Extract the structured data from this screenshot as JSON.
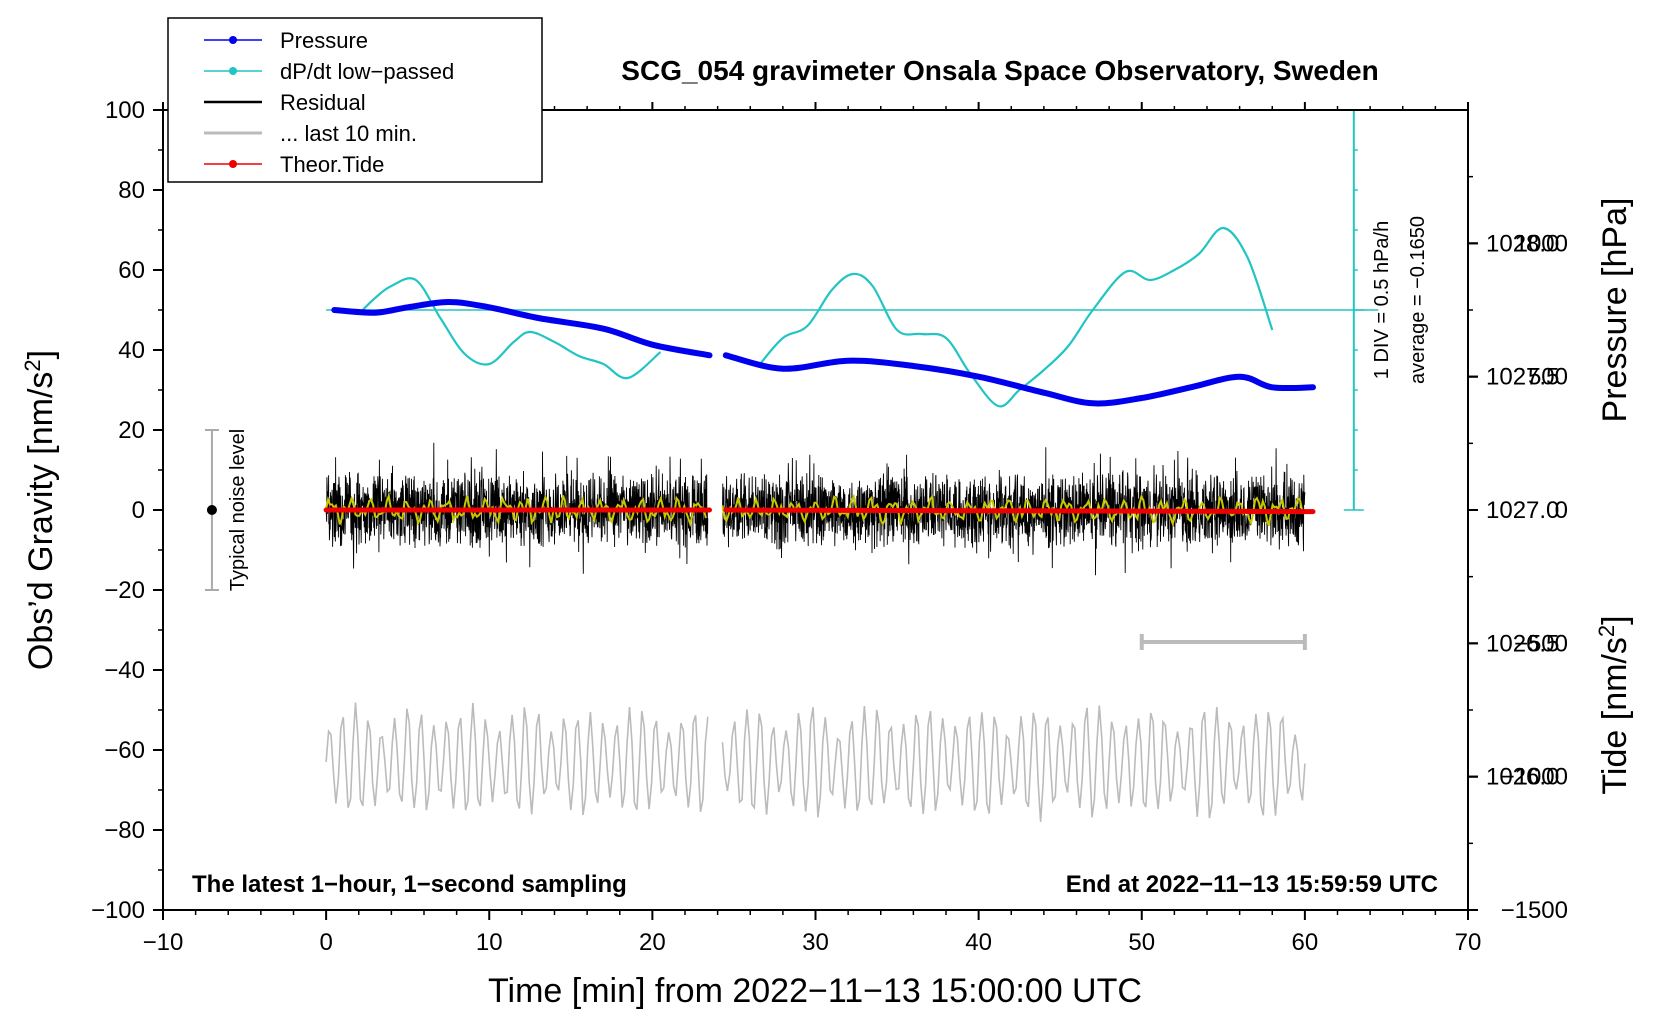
{
  "chart_data": {
    "type": "line",
    "title": "SCG_054 gravimeter Onsala Space Observatory, Sweden",
    "xlabel": "Time [min] from 2022−11−13 15:00:00 UTC",
    "ylabel_left_main": "Obs’d Gravity [nm/s",
    "ylabel_left_sup": "2",
    "ylabel_left_close": "]",
    "ylabel_right_pressure": "Pressure [hPa]",
    "ylabel_right_tide_main": "Tide [nm/s",
    "ylabel_right_tide_sup": "2",
    "ylabel_right_tide_close": "]",
    "xlim": [
      -10,
      70
    ],
    "ylim": [
      -100,
      100
    ],
    "pressure_lim": [
      1025.5,
      1028.5
    ],
    "tide_lim": [
      -1500,
      1500
    ],
    "x_ticks": [
      -10,
      0,
      10,
      20,
      30,
      40,
      50,
      60,
      70
    ],
    "x_tick_labels": [
      "−10",
      "0",
      "10",
      "20",
      "30",
      "40",
      "50",
      "60",
      "70"
    ],
    "y_ticks": [
      100,
      80,
      60,
      40,
      20,
      0,
      -20,
      -40,
      -60,
      -80,
      -100
    ],
    "y_tick_labels": [
      "100",
      "80",
      "60",
      "40",
      "20",
      "0",
      "−20",
      "−40",
      "−60",
      "−80",
      "−100"
    ],
    "pressure_ticks": [
      1028.0,
      1027.5,
      1027.0,
      1026.5,
      1026.0
    ],
    "pressure_tick_labels": [
      "1028.0",
      "1027.5",
      "1027.0",
      "1026.5",
      "1026.0"
    ],
    "tide_ticks": [
      1000,
      500,
      0,
      -500,
      -1000,
      -1500
    ],
    "tide_tick_labels": [
      "1000",
      "500",
      "0",
      "−500",
      "−1000",
      "−1500"
    ],
    "legend": [
      {
        "label": "Pressure",
        "color": "#0000ee",
        "marker": true
      },
      {
        "label": "dP/dt low−passed",
        "color": "#22c4c4",
        "marker": true
      },
      {
        "label": "Residual",
        "color": "#000000",
        "marker": false
      },
      {
        "label": "... last 10 min.",
        "color": "#bbbbbb",
        "marker": false
      },
      {
        "label": "Theor.Tide",
        "color": "#ee0000",
        "marker": true
      }
    ],
    "series": [
      {
        "name": "Pressure",
        "unit": "hPa",
        "color": "#0000ee",
        "x": [
          0.5,
          3,
          5,
          7.5,
          10,
          13,
          17,
          20,
          23.5,
          24.5,
          28,
          32,
          36,
          40,
          44,
          47,
          50,
          53,
          56,
          58,
          60.5
        ],
        "values": [
          1027.75,
          1027.74,
          1027.76,
          1027.78,
          1027.76,
          1027.72,
          1027.68,
          1027.62,
          1027.58,
          1027.58,
          1027.53,
          1027.56,
          1027.54,
          1027.5,
          1027.44,
          1027.4,
          1027.42,
          1027.46,
          1027.5,
          1027.46,
          1027.46
        ]
      },
      {
        "name": "dP/dt low−passed",
        "unit": "nm/s2 axis",
        "color": "#22c4c4",
        "x": [
          2,
          3,
          4,
          5.5,
          7,
          8.5,
          10,
          11.5,
          12.5,
          14,
          15.5,
          17,
          18.5,
          20.5
        ],
        "values": [
          49,
          53,
          56,
          57.5,
          48,
          39,
          36.5,
          42,
          44.5,
          42,
          38.5,
          36.5,
          33,
          39.5
        ]
      },
      {
        "name": "dP/dt low−passed (2)",
        "unit": "nm/s2 axis",
        "color": "#22c4c4",
        "x": [
          26.5,
          28,
          29.5,
          31,
          32.3,
          33.5,
          35,
          36.5,
          38,
          39.5,
          41.2,
          42.5,
          44,
          45.5,
          47,
          49,
          50.5,
          52,
          53.5,
          55,
          56.5,
          58
        ],
        "values": [
          36,
          43,
          46,
          55,
          59,
          56,
          45,
          44,
          43,
          34,
          26,
          30,
          35,
          41,
          50,
          59.5,
          57.5,
          60,
          64,
          70.5,
          63,
          45
        ]
      },
      {
        "name": "Residual",
        "color": "#000000",
        "x_start": 0,
        "x_end": 60,
        "gap": [
          23.4,
          24.3
        ],
        "amplitude": 20
      },
      {
        "name": "Residual (smoothed)",
        "color": "#c8c800",
        "x_start": 0,
        "x_end": 60,
        "gap": [
          23.4,
          24.3
        ]
      },
      {
        "name": "... last 10 min.",
        "color": "#bbbbbb",
        "x_start": 0,
        "x_end": 60,
        "gap": [
          23.4,
          24.3
        ],
        "center": -63
      },
      {
        "name": "Theor.Tide",
        "unit": "nm/s2",
        "color": "#ee0000",
        "x": [
          0,
          7.5,
          23.5,
          24.5,
          53,
          60.5
        ],
        "values": [
          0,
          0,
          0,
          0,
          -5,
          -6
        ]
      },
      {
        "name": "last 10 min. window",
        "color": "#bbbbbb",
        "x": [
          50,
          60
        ],
        "values": [
          -33,
          -33
        ]
      }
    ],
    "noise_bar": {
      "x": -7,
      "y_low": -20,
      "y_high": 20,
      "label": "Typical noise level"
    },
    "dpdt_scale": {
      "x": 63,
      "baseline": 50,
      "top": 100,
      "bottom": 0,
      "label_1": "1 DIV = 0.5 hPa/h",
      "label_2": "average = −0.1650"
    },
    "annotations": {
      "bottom_left": "The latest 1−hour, 1−second sampling",
      "bottom_right": "End at 2022−11−13 15:59:59 UTC"
    }
  }
}
